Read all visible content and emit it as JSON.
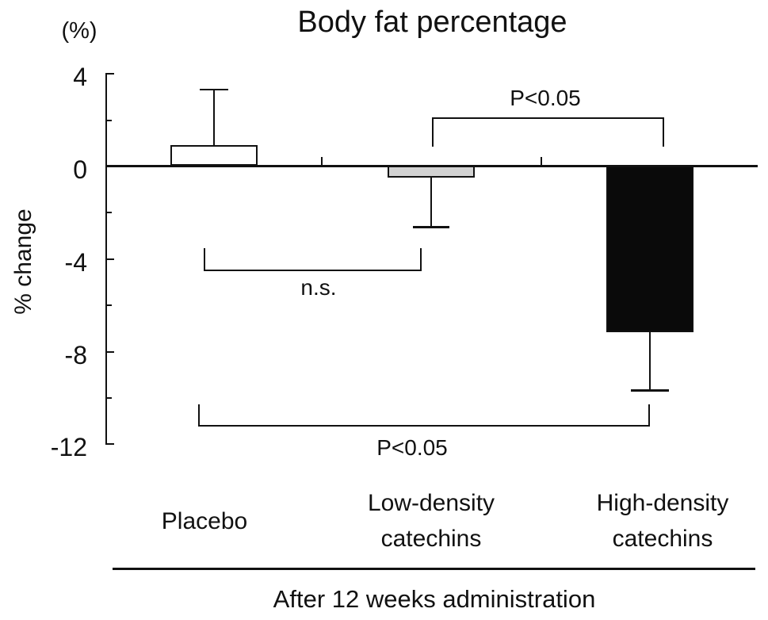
{
  "title": "Body fat percentage",
  "y_axis": {
    "unit_label": "(%)",
    "axis_label": "% change",
    "major_ticks": [
      "4",
      "0",
      "-4",
      "-8",
      "-12"
    ],
    "major_tick_values": [
      4,
      0,
      -4,
      -8,
      -12
    ],
    "minor_tick_values": [
      2,
      -2,
      -6,
      -10
    ]
  },
  "chart_data": {
    "type": "bar",
    "title": "Body fat percentage",
    "xlabel": "After 12 weeks administration",
    "ylabel": "% change",
    "ylim": [
      -12,
      4
    ],
    "categories": [
      "Placebo",
      "Low-density catechins",
      "High-density catechins"
    ],
    "category_display": [
      "Placebo",
      "Low-density\ncatechins",
      "High-density\ncatechins"
    ],
    "values": [
      0.9,
      -0.5,
      -7.2
    ],
    "error_values": [
      2.4,
      2.15,
      2.5
    ],
    "error_direction": [
      "up",
      "down",
      "down"
    ],
    "bar_colors": [
      "#ffffff",
      "#d2d2d2",
      "#0a0a0a"
    ],
    "bar_border_color": "#111111",
    "annotations": [
      {
        "label": "P<0.05",
        "groups": [
          "Low-density catechins",
          "High-density catechins"
        ],
        "side": "above"
      },
      {
        "label": "n.s.",
        "groups": [
          "Placebo",
          "Low-density catechins"
        ],
        "side": "below"
      },
      {
        "label": "P<0.05",
        "groups": [
          "Placebo",
          "High-density catechins"
        ],
        "side": "below"
      }
    ],
    "grid": false,
    "legend": false
  }
}
